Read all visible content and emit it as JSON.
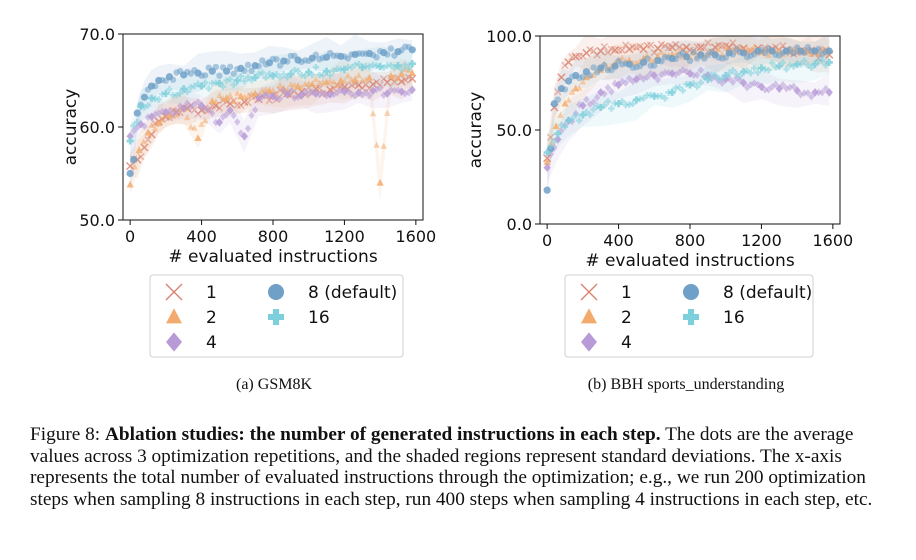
{
  "chart_data": [
    {
      "type": "scatter",
      "subplot_caption": "(a) GSM8K",
      "title": "",
      "xlabel": "# evaluated instructions",
      "ylabel": "accuracy",
      "xlim": [
        -40,
        1640
      ],
      "ylim": [
        50,
        70
      ],
      "xticks": [
        "0",
        "400",
        "800",
        "1200",
        "1600"
      ],
      "yticks": [
        "50.0",
        "60.0",
        "70.0"
      ],
      "grid": false,
      "legend_position": "below",
      "series": [
        {
          "name": "1",
          "marker": "x",
          "color": "#d9826f",
          "points": [
            [
              0,
              55.8
            ],
            [
              40,
              56.5
            ],
            [
              80,
              57.8
            ],
            [
              120,
              59.2
            ],
            [
              160,
              60.6
            ],
            [
              200,
              61.1
            ],
            [
              260,
              61.6
            ],
            [
              320,
              62.0
            ],
            [
              400,
              61.8
            ],
            [
              480,
              62.3
            ],
            [
              560,
              62.5
            ],
            [
              640,
              62.7
            ],
            [
              720,
              63.0
            ],
            [
              800,
              63.4
            ],
            [
              880,
              63.6
            ],
            [
              960,
              63.8
            ],
            [
              1040,
              64.1
            ],
            [
              1120,
              64.0
            ],
            [
              1200,
              64.3
            ],
            [
              1280,
              64.5
            ],
            [
              1360,
              64.6
            ],
            [
              1440,
              64.8
            ],
            [
              1520,
              64.9
            ],
            [
              1580,
              65.2
            ]
          ]
        },
        {
          "name": "2",
          "marker": "triangle",
          "color": "#f2ab6d",
          "points": [
            [
              0,
              53.8
            ],
            [
              50,
              57.5
            ],
            [
              100,
              59.4
            ],
            [
              160,
              60.4
            ],
            [
              220,
              61.3
            ],
            [
              300,
              62.0
            ],
            [
              380,
              58.8
            ],
            [
              460,
              62.8
            ],
            [
              540,
              63.1
            ],
            [
              620,
              63.3
            ],
            [
              700,
              63.6
            ],
            [
              780,
              63.9
            ],
            [
              860,
              64.1
            ],
            [
              940,
              64.4
            ],
            [
              1020,
              64.6
            ],
            [
              1100,
              64.8
            ],
            [
              1180,
              65.0
            ],
            [
              1260,
              65.1
            ],
            [
              1340,
              65.3
            ],
            [
              1400,
              54.0
            ],
            [
              1460,
              65.5
            ],
            [
              1520,
              65.7
            ],
            [
              1580,
              65.8
            ]
          ]
        },
        {
          "name": "4",
          "marker": "diamond",
          "color": "#b79ad6",
          "points": [
            [
              0,
              59.0
            ],
            [
              60,
              60.3
            ],
            [
              120,
              61.1
            ],
            [
              200,
              61.6
            ],
            [
              300,
              62.0
            ],
            [
              400,
              62.3
            ],
            [
              500,
              60.5
            ],
            [
              560,
              61.8
            ],
            [
              640,
              59.0
            ],
            [
              720,
              63.1
            ],
            [
              800,
              63.3
            ],
            [
              880,
              63.5
            ],
            [
              960,
              63.4
            ],
            [
              1040,
              63.6
            ],
            [
              1120,
              63.5
            ],
            [
              1200,
              63.8
            ],
            [
              1280,
              63.7
            ],
            [
              1360,
              63.9
            ],
            [
              1440,
              63.6
            ],
            [
              1520,
              63.8
            ],
            [
              1580,
              64.0
            ]
          ]
        },
        {
          "name": "8 (default)",
          "marker": "circle",
          "color": "#6ea0c8",
          "points": [
            [
              0,
              55.0
            ],
            [
              20,
              56.5
            ],
            [
              40,
              61.5
            ],
            [
              80,
              63.2
            ],
            [
              120,
              64.4
            ],
            [
              160,
              65.0
            ],
            [
              220,
              65.4
            ],
            [
              300,
              65.6
            ],
            [
              380,
              65.8
            ],
            [
              460,
              66.0
            ],
            [
              540,
              66.0
            ],
            [
              620,
              66.3
            ],
            [
              700,
              66.6
            ],
            [
              780,
              66.9
            ],
            [
              860,
              67.1
            ],
            [
              940,
              67.2
            ],
            [
              1020,
              67.4
            ],
            [
              1100,
              67.5
            ],
            [
              1180,
              67.6
            ],
            [
              1260,
              67.8
            ],
            [
              1340,
              67.9
            ],
            [
              1420,
              68.0
            ],
            [
              1500,
              68.1
            ],
            [
              1580,
              68.3
            ]
          ]
        },
        {
          "name": "16",
          "marker": "plus",
          "color": "#7ccfdb",
          "points": [
            [
              0,
              58.5
            ],
            [
              60,
              62.2
            ],
            [
              120,
              63.1
            ],
            [
              200,
              63.6
            ],
            [
              300,
              64.1
            ],
            [
              400,
              64.4
            ],
            [
              500,
              64.7
            ],
            [
              600,
              65.0
            ],
            [
              700,
              65.3
            ],
            [
              800,
              65.5
            ],
            [
              900,
              65.7
            ],
            [
              1000,
              65.9
            ],
            [
              1100,
              66.0
            ],
            [
              1200,
              66.2
            ],
            [
              1300,
              66.4
            ],
            [
              1400,
              66.5
            ],
            [
              1500,
              66.6
            ],
            [
              1580,
              66.8
            ]
          ]
        }
      ]
    },
    {
      "type": "scatter",
      "subplot_caption": "(b) BBH sports_understanding",
      "title": "",
      "xlabel": "# evaluated instructions",
      "ylabel": "accuracy",
      "xlim": [
        -40,
        1640
      ],
      "ylim": [
        0,
        100
      ],
      "xticks": [
        "0",
        "400",
        "800",
        "1200",
        "1600"
      ],
      "yticks": [
        "0.0",
        "50.0",
        "100.0"
      ],
      "grid": false,
      "legend_position": "below",
      "series": [
        {
          "name": "1",
          "marker": "x",
          "color": "#d9826f",
          "points": [
            [
              0,
              35
            ],
            [
              40,
              62
            ],
            [
              80,
              78
            ],
            [
              120,
              86
            ],
            [
              160,
              89
            ],
            [
              220,
              91
            ],
            [
              300,
              92
            ],
            [
              380,
              92.5
            ],
            [
              460,
              93
            ],
            [
              540,
              93
            ],
            [
              620,
              93.5
            ],
            [
              700,
              94
            ],
            [
              780,
              94
            ],
            [
              860,
              94
            ],
            [
              940,
              94
            ],
            [
              1020,
              94
            ],
            [
              1100,
              93.5
            ],
            [
              1180,
              93.5
            ],
            [
              1260,
              93
            ],
            [
              1340,
              92.5
            ],
            [
              1420,
              92
            ],
            [
              1500,
              91
            ],
            [
              1580,
              90
            ]
          ]
        },
        {
          "name": "2",
          "marker": "triangle",
          "color": "#f2ab6d",
          "points": [
            [
              0,
              33
            ],
            [
              50,
              52
            ],
            [
              100,
              64
            ],
            [
              160,
              72
            ],
            [
              220,
              78
            ],
            [
              300,
              82
            ],
            [
              380,
              85
            ],
            [
              460,
              87
            ],
            [
              540,
              88
            ],
            [
              620,
              89
            ],
            [
              700,
              90
            ],
            [
              780,
              90.5
            ],
            [
              860,
              91
            ],
            [
              940,
              91
            ],
            [
              1020,
              91.5
            ],
            [
              1100,
              91.5
            ],
            [
              1180,
              92
            ],
            [
              1260,
              92
            ],
            [
              1340,
              92
            ],
            [
              1420,
              92
            ],
            [
              1500,
              92
            ],
            [
              1580,
              92
            ]
          ]
        },
        {
          "name": "4",
          "marker": "diamond",
          "color": "#b79ad6",
          "points": [
            [
              0,
              30
            ],
            [
              60,
              45
            ],
            [
              120,
              55
            ],
            [
              200,
              63
            ],
            [
              300,
              70
            ],
            [
              400,
              74
            ],
            [
              500,
              77
            ],
            [
              600,
              79
            ],
            [
              700,
              80
            ],
            [
              800,
              80
            ],
            [
              900,
              79
            ],
            [
              1000,
              77
            ],
            [
              1100,
              75
            ],
            [
              1200,
              73
            ],
            [
              1300,
              72
            ],
            [
              1400,
              71
            ],
            [
              1500,
              70
            ],
            [
              1580,
              70
            ]
          ]
        },
        {
          "name": "8 (default)",
          "marker": "circle",
          "color": "#6ea0c8",
          "points": [
            [
              0,
              18
            ],
            [
              20,
              40
            ],
            [
              40,
              64
            ],
            [
              80,
              72
            ],
            [
              120,
              76
            ],
            [
              160,
              79
            ],
            [
              220,
              81
            ],
            [
              300,
              83
            ],
            [
              380,
              84
            ],
            [
              460,
              85
            ],
            [
              540,
              86
            ],
            [
              620,
              87
            ],
            [
              700,
              88
            ],
            [
              780,
              89
            ],
            [
              860,
              90
            ],
            [
              940,
              90
            ],
            [
              1020,
              91
            ],
            [
              1100,
              91
            ],
            [
              1180,
              92
            ],
            [
              1260,
              92
            ],
            [
              1340,
              92
            ],
            [
              1420,
              92
            ],
            [
              1500,
              92
            ],
            [
              1580,
              92
            ]
          ]
        },
        {
          "name": "16",
          "marker": "plus",
          "color": "#7ccfdb",
          "points": [
            [
              0,
              38
            ],
            [
              60,
              48
            ],
            [
              120,
              55
            ],
            [
              200,
              58
            ],
            [
              300,
              62
            ],
            [
              400,
              64
            ],
            [
              500,
              66
            ],
            [
              600,
              68
            ],
            [
              700,
              70
            ],
            [
              800,
              74
            ],
            [
              900,
              77
            ],
            [
              1000,
              79
            ],
            [
              1100,
              81
            ],
            [
              1200,
              83
            ],
            [
              1300,
              84
            ],
            [
              1400,
              85
            ],
            [
              1500,
              85
            ],
            [
              1580,
              86
            ]
          ]
        }
      ]
    }
  ],
  "figure_caption": {
    "label": "Figure 8: ",
    "bold": "Ablation studies: the number of generated instructions in each step.",
    "rest": " The dots are the average values across 3 optimization repetitions, and the shaded regions represent standard deviations. The x-axis represents the total number of evaluated instructions through the optimization; e.g., we run 200 optimization steps when sampling 8 instructions in each step, run 400 steps when sampling 4 instructions in each step, etc."
  }
}
